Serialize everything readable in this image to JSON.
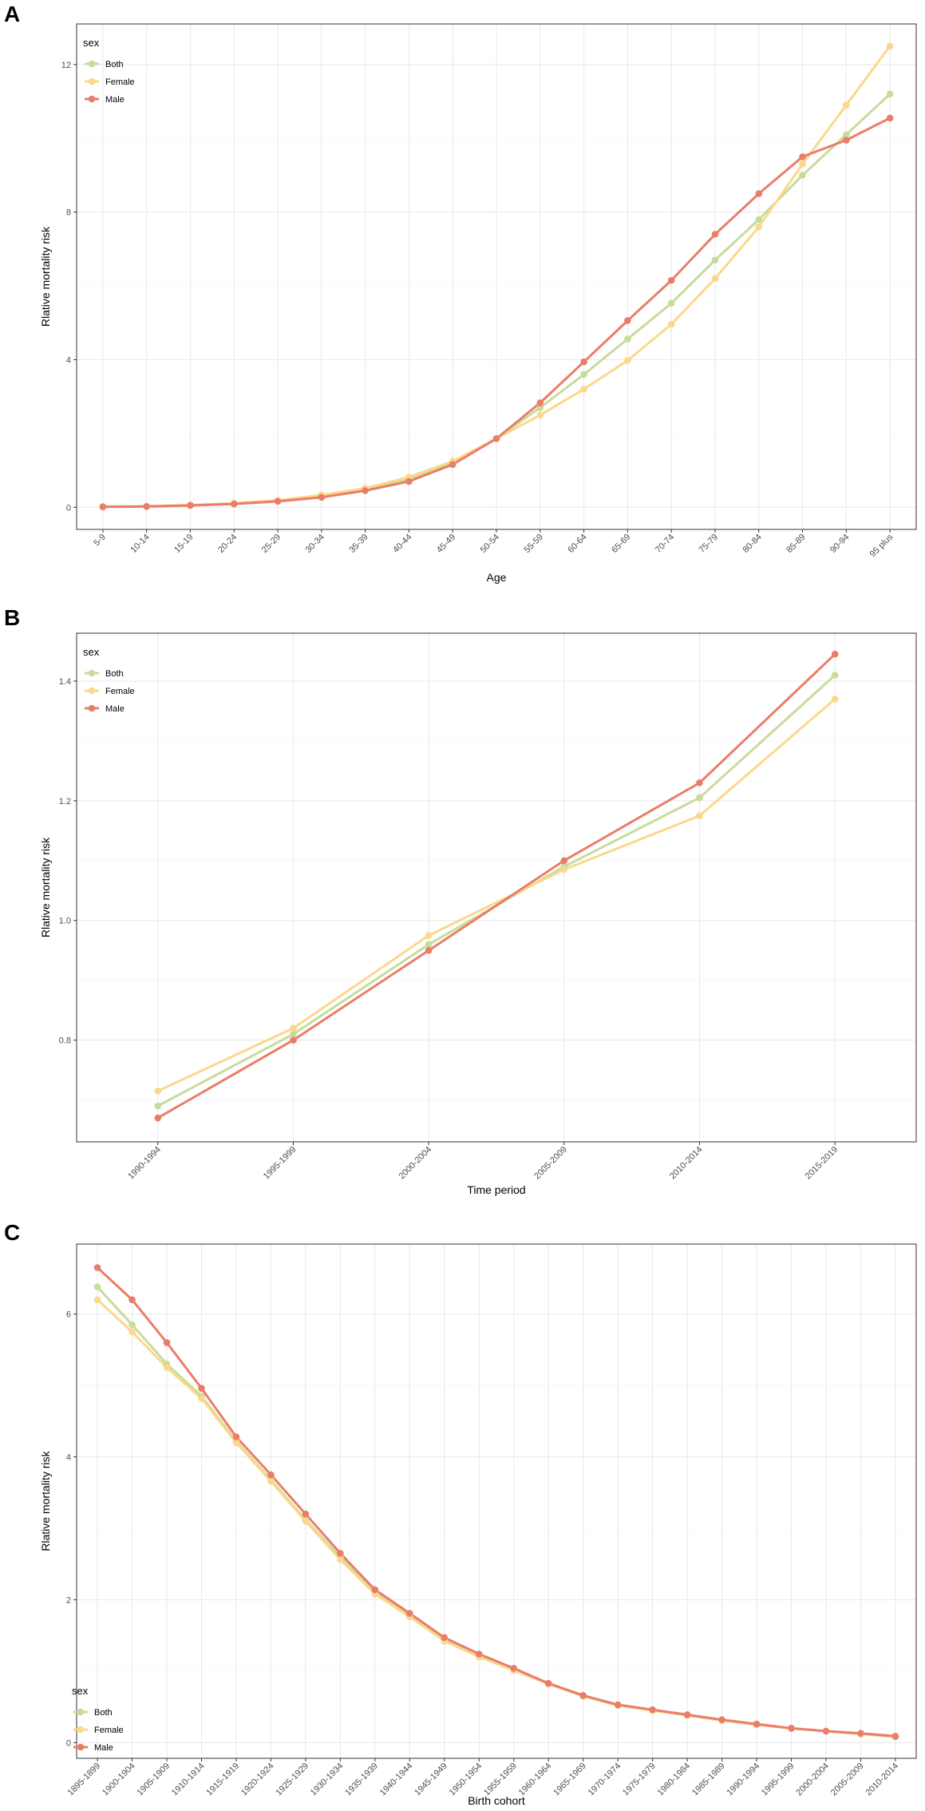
{
  "colors": {
    "Both": "#c6dc9c",
    "Female": "#fbd88b",
    "Male": "#ea7d69"
  },
  "legend": {
    "title": "sex",
    "entries": [
      "Both",
      "Female",
      "Male"
    ]
  },
  "chart_data": [
    {
      "panel": "A",
      "type": "line",
      "xlabel": "Age",
      "ylabel": "Rlative mortality risk",
      "legend_position": "top-left",
      "grid": true,
      "ylim": [
        -0.6,
        13.1
      ],
      "yticks": [
        0,
        4,
        8,
        12
      ],
      "categories": [
        "5-9",
        "10-14",
        "15-19",
        "20-24",
        "25-29",
        "30-34",
        "35-39",
        "40-44",
        "45-49",
        "50-54",
        "55-59",
        "60-64",
        "65-69",
        "70-74",
        "75-79",
        "80-84",
        "85-89",
        "90-94",
        "95 plus"
      ],
      "series": [
        {
          "name": "Both",
          "values": [
            0.02,
            0.03,
            0.06,
            0.1,
            0.18,
            0.31,
            0.49,
            0.76,
            1.2,
            1.86,
            2.7,
            3.6,
            4.56,
            5.53,
            6.7,
            7.8,
            9.0,
            10.1,
            11.2
          ]
        },
        {
          "name": "Female",
          "values": [
            0.02,
            0.03,
            0.06,
            0.11,
            0.19,
            0.33,
            0.52,
            0.82,
            1.25,
            1.86,
            2.5,
            3.2,
            3.98,
            4.96,
            6.2,
            7.6,
            9.3,
            10.9,
            12.5
          ]
        },
        {
          "name": "Male",
          "values": [
            0.01,
            0.02,
            0.05,
            0.09,
            0.16,
            0.27,
            0.45,
            0.7,
            1.16,
            1.86,
            2.83,
            3.94,
            5.06,
            6.15,
            7.4,
            8.5,
            9.5,
            9.95,
            10.55
          ]
        }
      ]
    },
    {
      "panel": "B",
      "type": "line",
      "xlabel": "Time period",
      "ylabel": "Rlative mortality risk",
      "legend_position": "top-left",
      "grid": true,
      "ylim": [
        0.63,
        1.48
      ],
      "yticks": [
        0.8,
        1.0,
        1.2,
        1.4
      ],
      "yticklabels": [
        "0.8",
        "1.0",
        "1.2",
        "1.4"
      ],
      "categories": [
        "1990-1994",
        "1995-1999",
        "2000-2004",
        "2005-2009",
        "2010-2014",
        "2015-2019"
      ],
      "series": [
        {
          "name": "Both",
          "values": [
            0.69,
            0.81,
            0.96,
            1.09,
            1.205,
            1.41
          ]
        },
        {
          "name": "Female",
          "values": [
            0.715,
            0.82,
            0.975,
            1.085,
            1.175,
            1.37
          ]
        },
        {
          "name": "Male",
          "values": [
            0.67,
            0.8,
            0.95,
            1.1,
            1.23,
            1.445
          ]
        }
      ]
    },
    {
      "panel": "C",
      "type": "line",
      "xlabel": "Birth cohort",
      "ylabel": "Rlative mortality risk",
      "legend_position": "bottom-left",
      "grid": true,
      "ylim": [
        -0.22,
        6.98
      ],
      "yticks": [
        0,
        2,
        4,
        6
      ],
      "categories": [
        "1895-1899",
        "1900-1904",
        "1905-1909",
        "1910-1914",
        "1915-1919",
        "1920-1924",
        "1925-1929",
        "1930-1934",
        "1935-1939",
        "1940-1944",
        "1945-1949",
        "1950-1954",
        "1955-1959",
        "1960-1964",
        "1965-1969",
        "1970-1974",
        "1975-1979",
        "1980-1984",
        "1985-1989",
        "1990-1994",
        "1995-1999",
        "2000-2004",
        "2005-2009",
        "2010-2014"
      ],
      "series": [
        {
          "name": "Both",
          "values": [
            6.38,
            5.85,
            5.3,
            4.85,
            4.22,
            3.68,
            3.12,
            2.6,
            2.1,
            1.78,
            1.44,
            1.22,
            1.02,
            0.82,
            0.65,
            0.52,
            0.45,
            0.38,
            0.31,
            0.25,
            0.2,
            0.16,
            0.12,
            0.08
          ]
        },
        {
          "name": "Female",
          "values": [
            6.2,
            5.75,
            5.25,
            4.82,
            4.2,
            3.66,
            3.1,
            2.56,
            2.08,
            1.76,
            1.42,
            1.2,
            1.01,
            0.82,
            0.65,
            0.52,
            0.45,
            0.38,
            0.31,
            0.25,
            0.2,
            0.16,
            0.12,
            0.08
          ]
        },
        {
          "name": "Male",
          "values": [
            6.65,
            6.2,
            5.6,
            4.96,
            4.28,
            3.75,
            3.2,
            2.65,
            2.14,
            1.81,
            1.47,
            1.24,
            1.04,
            0.83,
            0.66,
            0.53,
            0.46,
            0.39,
            0.32,
            0.26,
            0.2,
            0.16,
            0.13,
            0.09
          ]
        }
      ]
    }
  ]
}
